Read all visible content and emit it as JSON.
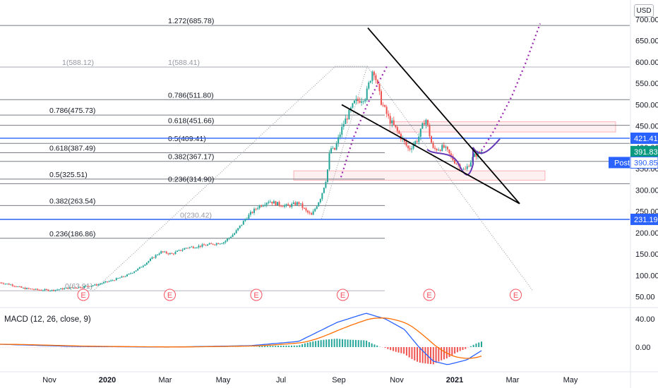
{
  "chart_data": [
    {
      "type": "candlestick",
      "currency": "USD",
      "y_axis_ticks": [
        50,
        100,
        150,
        200,
        250,
        300,
        350,
        400,
        450,
        500,
        550,
        600,
        650,
        700
      ],
      "ylim": [
        40,
        740
      ],
      "x_axis_ticks": [
        "Nov",
        "2020",
        "Mar",
        "May",
        "Jul",
        "Sep",
        "Nov",
        "2021",
        "Mar",
        "May"
      ],
      "price_tags": [
        {
          "value": 421.41,
          "label": "421.41",
          "color": "#2962ff"
        },
        {
          "value": 391.83,
          "label": "391.83",
          "color": "#089981"
        },
        {
          "value": 390.85,
          "label": "390.85",
          "prefix": "Post",
          "color": "#2962ff"
        },
        {
          "value": 231.19,
          "label": "231.19",
          "color": "#2962ff"
        }
      ],
      "horizontal_lines": [
        421.41,
        231.19
      ],
      "fib_levels_left": [
        {
          "label": "0.786(475.73)",
          "value": 475.73
        },
        {
          "label": "0.618(387.49)",
          "value": 387.49
        },
        {
          "label": "0.5(325.51)",
          "value": 325.51
        },
        {
          "label": "0.382(263.54)",
          "value": 263.54
        },
        {
          "label": "0.236(186.86)",
          "value": 186.86
        },
        {
          "label": "1(588.12)",
          "value": 588.12,
          "faint": true
        },
        {
          "label": "0(63.91)",
          "value": 63.91,
          "faint": true
        }
      ],
      "fib_levels_right": [
        {
          "label": "1.272(685.78)",
          "value": 685.78
        },
        {
          "label": "1(588.41)",
          "value": 588.41,
          "faint": true
        },
        {
          "label": "0.786(511.80)",
          "value": 511.8
        },
        {
          "label": "0.618(451.66)",
          "value": 451.66
        },
        {
          "label": "0.5(409.41)",
          "value": 409.41
        },
        {
          "label": "0.382(367.17)",
          "value": 367.17
        },
        {
          "label": "0.236(314.90)",
          "value": 314.9
        },
        {
          "label": "0(230.42)",
          "value": 230.42,
          "faint": true
        }
      ],
      "zones": [
        {
          "from": 436,
          "to": 460
        },
        {
          "from": 323,
          "to": 345
        }
      ],
      "earnings_markers": [
        "E",
        "E",
        "E",
        "E",
        "E",
        "E"
      ],
      "price_path": [
        [
          0,
          83
        ],
        [
          0.3,
          78
        ],
        [
          0.6,
          70
        ],
        [
          1.0,
          66
        ],
        [
          1.4,
          65
        ],
        [
          1.8,
          70
        ],
        [
          2.2,
          73
        ],
        [
          2.6,
          78
        ],
        [
          3.0,
          88
        ],
        [
          3.4,
          100
        ],
        [
          3.7,
          115
        ],
        [
          4.0,
          135
        ],
        [
          4.3,
          155
        ],
        [
          4.6,
          150
        ],
        [
          5.0,
          165
        ],
        [
          5.3,
          168
        ],
        [
          5.6,
          172
        ],
        [
          6.0,
          178
        ],
        [
          6.3,
          200
        ],
        [
          6.6,
          235
        ],
        [
          6.9,
          260
        ],
        [
          7.2,
          275
        ],
        [
          7.4,
          268
        ],
        [
          7.7,
          262
        ],
        [
          8.0,
          270
        ],
        [
          8.2,
          250
        ],
        [
          8.35,
          240
        ],
        [
          8.6,
          285
        ],
        [
          8.75,
          330
        ],
        [
          8.85,
          400
        ],
        [
          8.95,
          390
        ],
        [
          9.2,
          455
        ],
        [
          9.5,
          505
        ],
        [
          9.8,
          520
        ],
        [
          10.0,
          588
        ],
        [
          10.2,
          510
        ],
        [
          10.4,
          470
        ],
        [
          10.7,
          430
        ],
        [
          10.95,
          395
        ],
        [
          11.2,
          420
        ],
        [
          11.4,
          470
        ],
        [
          11.6,
          395
        ],
        [
          11.9,
          400
        ],
        [
          12.15,
          370
        ],
        [
          12.45,
          345
        ],
        [
          12.7,
          380
        ],
        [
          12.9,
          391
        ]
      ]
    },
    {
      "type": "macd",
      "legend": "MACD (12, 26, close, 9)",
      "y_axis_ticks": [
        40.0,
        0.0
      ],
      "y_axis_labels": [
        "40.00",
        "0.00"
      ],
      "ylim": [
        -35,
        55
      ]
    }
  ]
}
